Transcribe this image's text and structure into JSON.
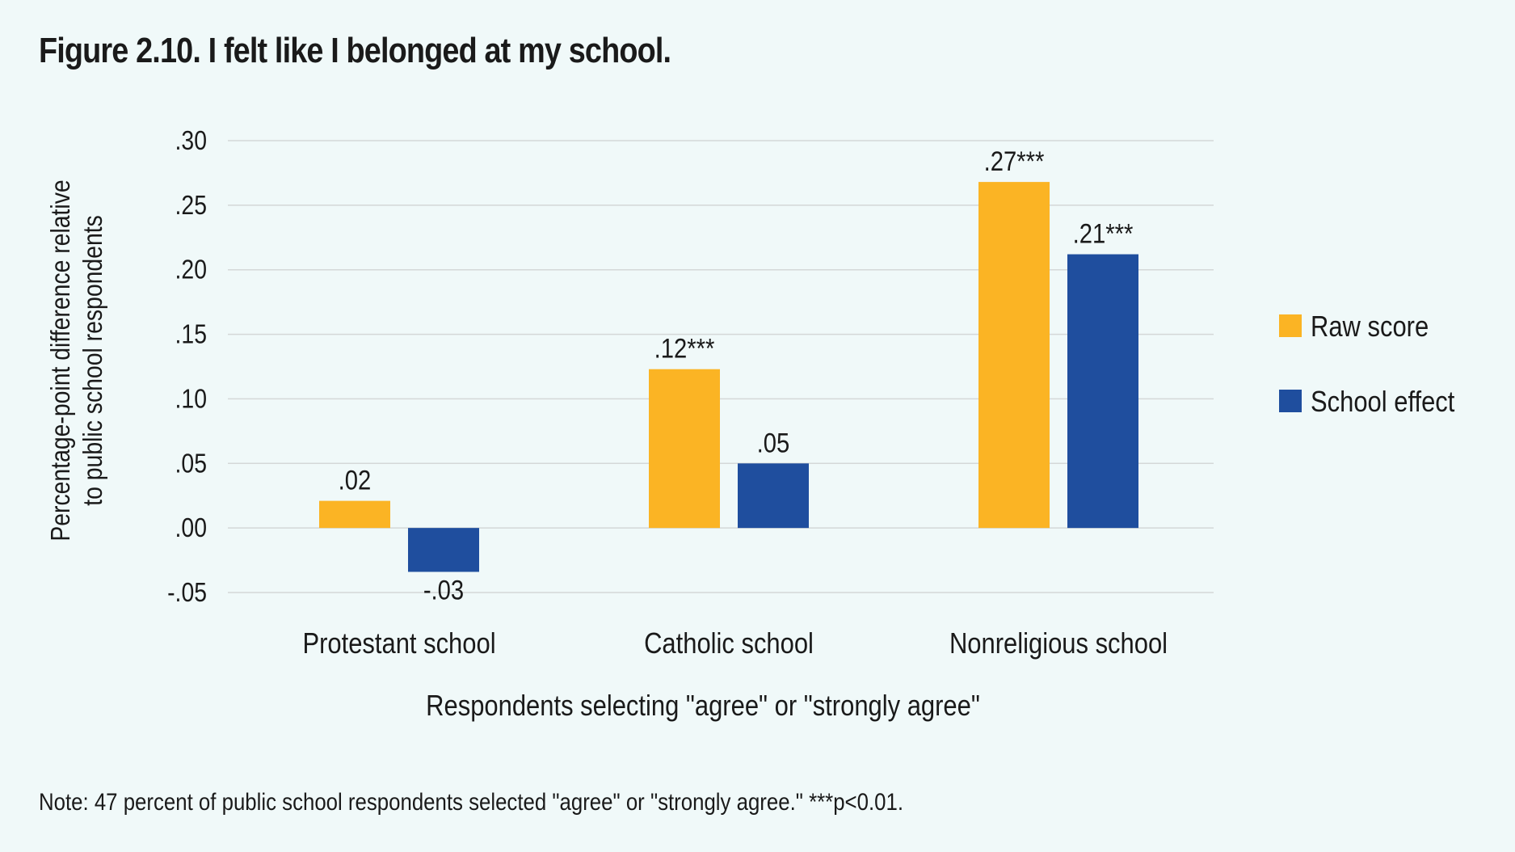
{
  "chart_data": {
    "type": "bar",
    "title": "Figure 2.10. I felt like I belonged at my school.",
    "categories": [
      "Protestant school",
      "Catholic school",
      "Nonreligious school"
    ],
    "series": [
      {
        "name": "Raw score",
        "color": "#fbb424",
        "values": [
          0.021,
          0.123,
          0.268
        ],
        "labels": [
          ".02",
          ".12***",
          ".27***"
        ]
      },
      {
        "name": "School effect",
        "color": "#1f4e9e",
        "values": [
          -0.034,
          0.05,
          0.212
        ],
        "labels": [
          "-.03",
          ".05",
          ".21***"
        ]
      }
    ],
    "xlabel": "Respondents selecting \"agree\" or \"strongly agree\"",
    "ylabel": "Percentage-point difference relative to public school respondents",
    "ylabel_lines": [
      "Percentage-point difference relative",
      "to public school respondents"
    ],
    "ylim": [
      -0.05,
      0.3
    ],
    "yticks": [
      -0.05,
      0.0,
      0.05,
      0.1,
      0.15,
      0.2,
      0.25,
      0.3
    ],
    "ytick_labels": [
      "-.05",
      ".00",
      ".05",
      ".10",
      ".15",
      ".20",
      ".25",
      ".30"
    ],
    "grid": true,
    "legend_position": "right",
    "note": "Note: 47 percent of public school respondents selected \"agree\" or \"strongly agree.\" ***p<0.01."
  }
}
